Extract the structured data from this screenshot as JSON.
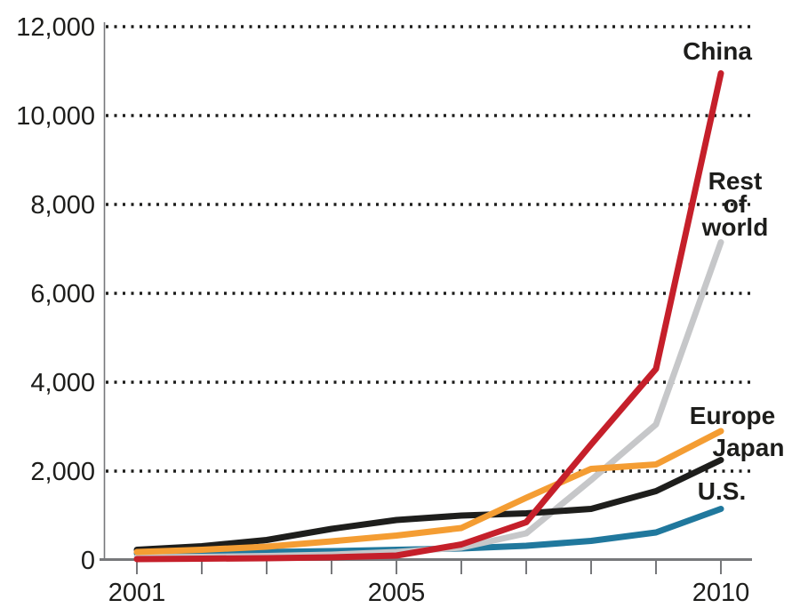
{
  "chart_data": {
    "type": "line",
    "title": "",
    "xlabel": "",
    "ylabel": "",
    "x": [
      2001,
      2002,
      2003,
      2004,
      2005,
      2006,
      2007,
      2008,
      2009,
      2010
    ],
    "series": [
      {
        "name": "China",
        "color": "#c51f2a",
        "values": [
          20,
          30,
          40,
          60,
          100,
          350,
          850,
          2600,
          4300,
          10950
        ]
      },
      {
        "name": "Rest of world",
        "color": "#c6c7c9",
        "values": [
          60,
          70,
          90,
          120,
          180,
          280,
          600,
          1800,
          3050,
          7150
        ]
      },
      {
        "name": "Europe",
        "color": "#f49d33",
        "values": [
          180,
          230,
          300,
          420,
          550,
          720,
          1400,
          2050,
          2150,
          2900
        ]
      },
      {
        "name": "Japan",
        "color": "#1e1e1c",
        "values": [
          230,
          310,
          450,
          700,
          900,
          1000,
          1050,
          1150,
          1550,
          2250
        ]
      },
      {
        "name": "U.S.",
        "color": "#20789d",
        "values": [
          150,
          160,
          180,
          200,
          230,
          260,
          320,
          430,
          620,
          1150
        ]
      }
    ],
    "ylim": [
      0,
      12000
    ],
    "ytick_values": [
      0,
      2000,
      4000,
      6000,
      8000,
      10000,
      12000
    ],
    "ytick_labels": [
      "0",
      "2,000",
      "4,000",
      "6,000",
      "8,000",
      "10,000",
      "12,000"
    ],
    "xtick_values": [
      2001,
      2002,
      2003,
      2004,
      2005,
      2006,
      2007,
      2008,
      2009,
      2010
    ],
    "xtick_labeled": {
      "2001": "2001",
      "2005": "2005",
      "2010": "2010"
    },
    "grid": "dotted-horizontal",
    "legend_position": "direct-line-labels-right",
    "text_color": "#1d1d1b",
    "axis_color": "#77787b"
  }
}
